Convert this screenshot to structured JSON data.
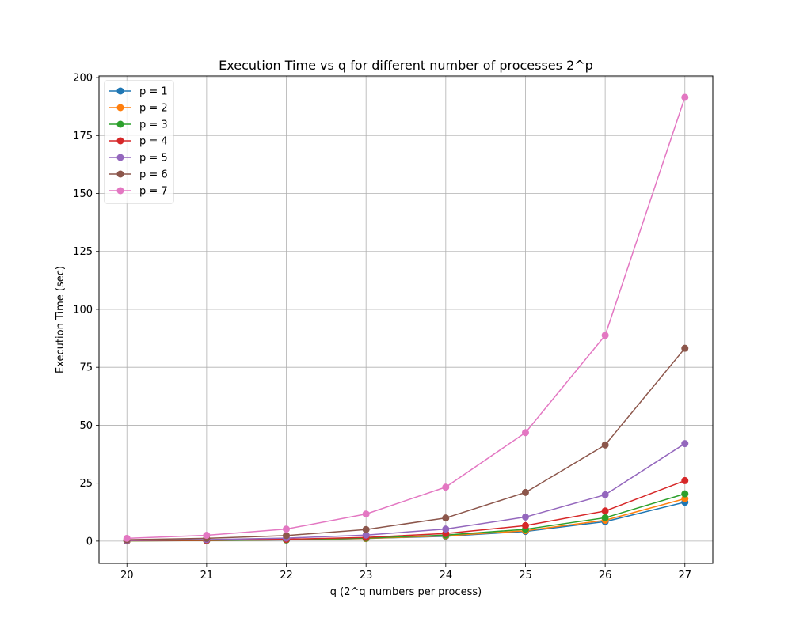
{
  "chart_data": {
    "type": "line",
    "title": "Execution Time vs q for different number of processes 2^p",
    "xlabel": "q (2^q numbers per process)",
    "ylabel": "Execution Time (sec)",
    "x": [
      20,
      21,
      22,
      23,
      24,
      25,
      26,
      27
    ],
    "xticks": [
      "20",
      "21",
      "22",
      "23",
      "24",
      "25",
      "26",
      "27"
    ],
    "xlim": [
      19.65,
      27.35
    ],
    "ylim": [
      -9.6,
      200.7
    ],
    "yticks": [
      "0",
      "25",
      "50",
      "75",
      "100",
      "125",
      "150",
      "175",
      "200"
    ],
    "ytick_values": [
      0,
      25,
      50,
      75,
      100,
      125,
      150,
      175,
      200
    ],
    "grid": true,
    "legend_position": "upper-left",
    "series": [
      {
        "name": "p = 1",
        "color": "#1f77b4",
        "values": [
          0.1,
          0.25,
          0.5,
          1.1,
          2.1,
          4.2,
          8.4,
          16.8
        ]
      },
      {
        "name": "p = 2",
        "color": "#ff7f0e",
        "values": [
          0.1,
          0.25,
          0.55,
          1.15,
          2.3,
          4.5,
          9.0,
          18.3
        ]
      },
      {
        "name": "p = 3",
        "color": "#2ca02c",
        "values": [
          0.15,
          0.3,
          0.6,
          1.3,
          2.6,
          5.1,
          10.1,
          20.4
        ]
      },
      {
        "name": "p = 4",
        "color": "#d62728",
        "values": [
          0.2,
          0.4,
          0.8,
          1.6,
          3.3,
          6.7,
          13.0,
          26.1
        ]
      },
      {
        "name": "p = 5",
        "color": "#9467bd",
        "values": [
          0.3,
          0.65,
          1.3,
          2.6,
          5.2,
          10.4,
          20.0,
          42.1
        ]
      },
      {
        "name": "p = 6",
        "color": "#8c564b",
        "values": [
          0.6,
          1.2,
          2.4,
          5.0,
          10.0,
          21.0,
          41.5,
          83.2
        ]
      },
      {
        "name": "p = 7",
        "color": "#e377c2",
        "values": [
          1.2,
          2.5,
          5.2,
          11.7,
          23.3,
          46.8,
          88.8,
          191.5
        ]
      }
    ]
  }
}
